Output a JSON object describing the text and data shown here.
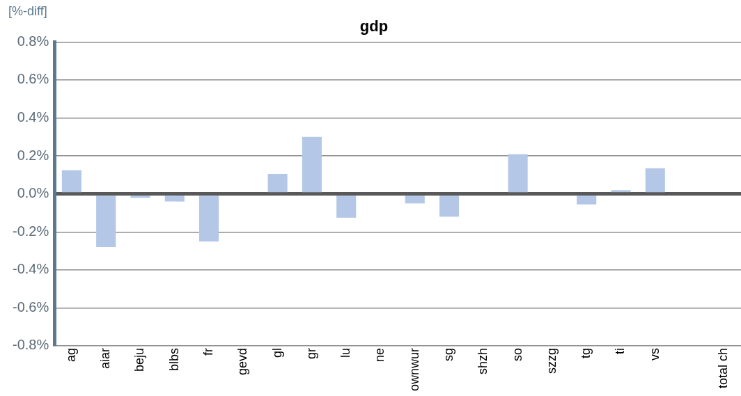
{
  "chart_data": {
    "type": "bar",
    "title": "gdp",
    "ylabel": "[%-diff]",
    "categories": [
      "ag",
      "aiar",
      "beju",
      "blbs",
      "fr",
      "gevd",
      "gl",
      "gr",
      "lu",
      "ne",
      "ownwur",
      "sg",
      "shzh",
      "so",
      "szzg",
      "tg",
      "ti",
      "vs",
      null,
      "total ch"
    ],
    "values": [
      0.125,
      -0.28,
      -0.02,
      -0.04,
      -0.25,
      0,
      0.105,
      0.3,
      -0.125,
      0,
      -0.05,
      -0.12,
      0,
      0.21,
      0,
      -0.055,
      0.02,
      0.135,
      null,
      0
    ],
    "color": "#b4c7e7",
    "ylim": [
      -0.8,
      0.8
    ],
    "yticks": [
      {
        "value": -0.8,
        "label": "-0.8%"
      },
      {
        "value": -0.6,
        "label": "-0.6%"
      },
      {
        "value": -0.4,
        "label": "-0.4%"
      },
      {
        "value": -0.2,
        "label": "-0.2%"
      },
      {
        "value": 0,
        "label": "0.0%"
      },
      {
        "value": 0.2,
        "label": "0.2%"
      },
      {
        "value": 0.4,
        "label": "0.4%"
      },
      {
        "value": 0.6,
        "label": "0.6%"
      },
      {
        "value": 0.8,
        "label": "0.8%"
      }
    ],
    "grid": "y"
  }
}
